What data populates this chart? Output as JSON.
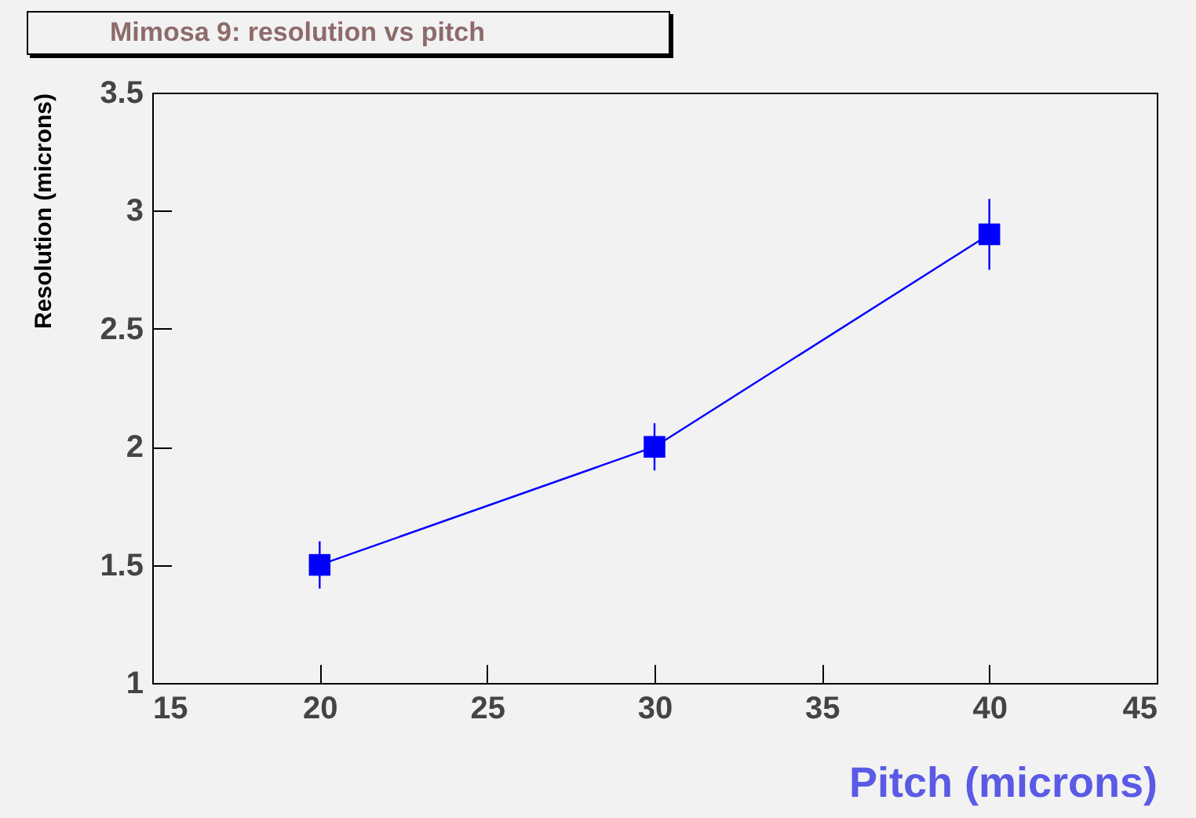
{
  "chart_data": {
    "type": "line",
    "title": "Mimosa 9: resolution vs pitch",
    "xlabel": "Pitch (microns)",
    "ylabel": "Resolution (microns)",
    "x": [
      20,
      30,
      40
    ],
    "series": [
      {
        "color": "#0000ff",
        "values": [
          1.5,
          2.0,
          2.9
        ],
        "errors": [
          0.1,
          0.1,
          0.15
        ]
      }
    ],
    "xlim": [
      15,
      45
    ],
    "xticks": [
      15,
      20,
      25,
      30,
      35,
      40,
      45
    ],
    "ylim": [
      1,
      3.5
    ],
    "yticks": [
      1,
      1.5,
      2,
      2.5,
      3,
      3.5
    ],
    "marker": "square",
    "grid": false,
    "legend": false
  }
}
